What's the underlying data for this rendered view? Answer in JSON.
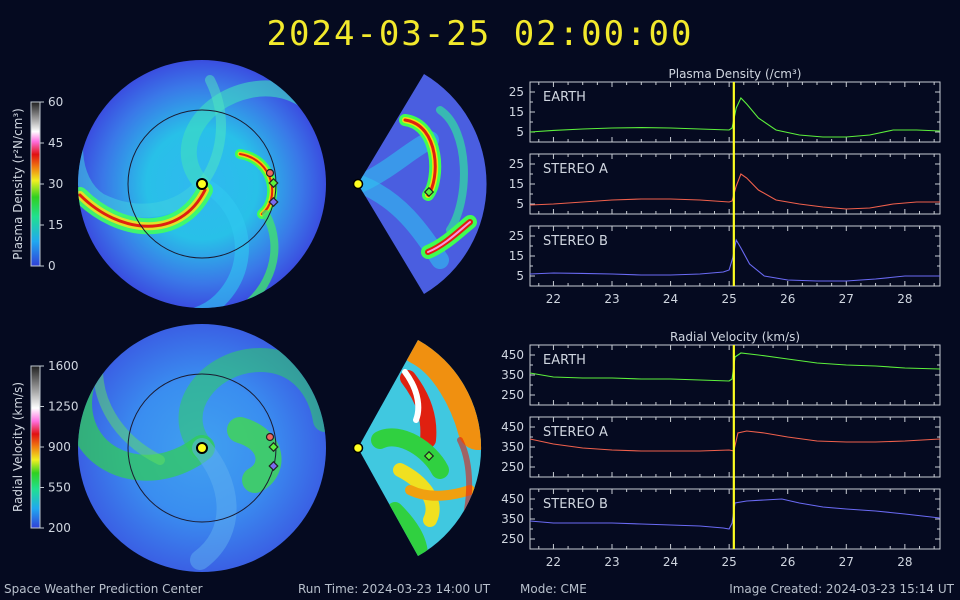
{
  "title": "2024-03-25 02:00:00",
  "footer": {
    "org": "Space Weather Prediction Center",
    "run_time": "Run Time: 2024-03-23 14:00 UT",
    "mode": "Mode: CME",
    "image_created": "Image Created: 2024-03-23 15:14 UT"
  },
  "colors": {
    "earth": "#5cf03c",
    "stereo_a": "#f0604c",
    "stereo_b": "#6a6af4",
    "time_marker": "#ffff20",
    "title": "#f2e92c"
  },
  "colorbars": [
    {
      "label": "Plasma Density (r²N/cm³)",
      "ticks": [
        "60",
        "45",
        "30",
        "15",
        "0"
      ]
    },
    {
      "label": "Radial Velocity (km/s)",
      "ticks": [
        "1600",
        "1250",
        "900",
        "550",
        "200"
      ]
    }
  ],
  "chart_data": [
    {
      "type": "line",
      "title": "Plasma Density (/cm³)",
      "xlim": [
        21.6,
        28.6
      ],
      "xticks": [
        22,
        23,
        24,
        25,
        26,
        27,
        28
      ],
      "time_marker": 25.08,
      "panels": [
        {
          "name": "EARTH",
          "ylim": [
            0,
            30
          ],
          "yticks": [
            5,
            15,
            25
          ],
          "x": [
            21.6,
            22.0,
            22.5,
            23.0,
            23.5,
            24.0,
            24.5,
            25.0,
            25.05,
            25.12,
            25.2,
            25.3,
            25.5,
            25.8,
            26.2,
            26.6,
            27.0,
            27.4,
            27.8,
            28.2,
            28.6
          ],
          "y": [
            5,
            5.8,
            6.5,
            7,
            7.2,
            7,
            6.5,
            6,
            7,
            17,
            22,
            19,
            12,
            6,
            3.5,
            2.5,
            2.5,
            3.5,
            6,
            6,
            5.5
          ]
        },
        {
          "name": "STEREO A",
          "ylim": [
            0,
            30
          ],
          "yticks": [
            5,
            15,
            25
          ],
          "x": [
            21.6,
            22.0,
            22.5,
            23.0,
            23.5,
            24.0,
            24.5,
            25.0,
            25.05,
            25.12,
            25.2,
            25.3,
            25.5,
            25.8,
            26.2,
            26.6,
            27.0,
            27.4,
            27.8,
            28.2,
            28.6
          ],
          "y": [
            4.5,
            5,
            6,
            7,
            7.5,
            7.5,
            7,
            6,
            6.5,
            14,
            20,
            18,
            12,
            7,
            5,
            3.5,
            2.5,
            3,
            5,
            6,
            6
          ]
        },
        {
          "name": "STEREO B",
          "ylim": [
            0,
            30
          ],
          "yticks": [
            5,
            15,
            25
          ],
          "x": [
            21.6,
            22.0,
            22.5,
            23.0,
            23.5,
            24.0,
            24.5,
            24.9,
            25.0,
            25.06,
            25.12,
            25.2,
            25.35,
            25.6,
            26.0,
            26.5,
            27.0,
            27.5,
            28.0,
            28.6
          ],
          "y": [
            6,
            6.5,
            6.3,
            6,
            5.5,
            5.5,
            6,
            7,
            8,
            14,
            23,
            19,
            11,
            5,
            3,
            2.5,
            2.5,
            3.5,
            5,
            5
          ]
        }
      ]
    },
    {
      "type": "line",
      "title": "Radial Velocity (km/s)",
      "xlim": [
        21.6,
        28.6
      ],
      "xticks": [
        22,
        23,
        24,
        25,
        26,
        27,
        28
      ],
      "time_marker": 25.08,
      "panels": [
        {
          "name": "EARTH",
          "ylim": [
            200,
            500
          ],
          "yticks": [
            250,
            350,
            450
          ],
          "x": [
            21.6,
            22.0,
            22.5,
            23.0,
            23.5,
            24.0,
            24.5,
            25.0,
            25.05,
            25.1,
            25.2,
            25.5,
            26.0,
            26.5,
            27.0,
            27.5,
            28.0,
            28.6
          ],
          "y": [
            360,
            340,
            335,
            335,
            330,
            330,
            325,
            320,
            330,
            440,
            460,
            450,
            430,
            410,
            400,
            395,
            385,
            380
          ]
        },
        {
          "name": "STEREO A",
          "ylim": [
            200,
            500
          ],
          "yticks": [
            250,
            350,
            450
          ],
          "x": [
            21.6,
            22.0,
            22.5,
            23.0,
            23.5,
            24.0,
            24.5,
            25.0,
            25.08,
            25.15,
            25.3,
            25.6,
            26.0,
            26.5,
            27.0,
            27.5,
            28.0,
            28.6
          ],
          "y": [
            390,
            365,
            345,
            335,
            330,
            330,
            330,
            335,
            330,
            420,
            430,
            420,
            400,
            380,
            375,
            375,
            380,
            390
          ]
        },
        {
          "name": "STEREO B",
          "ylim": [
            200,
            500
          ],
          "yticks": [
            250,
            350,
            450
          ],
          "x": [
            21.6,
            22.0,
            22.5,
            23.0,
            23.5,
            24.0,
            24.5,
            24.9,
            25.0,
            25.05,
            25.1,
            25.3,
            25.6,
            25.9,
            26.2,
            26.6,
            27.0,
            27.5,
            28.0,
            28.6
          ],
          "y": [
            340,
            330,
            330,
            330,
            325,
            320,
            315,
            305,
            300,
            330,
            430,
            440,
            445,
            450,
            430,
            410,
            400,
            390,
            375,
            355
          ]
        }
      ]
    }
  ]
}
